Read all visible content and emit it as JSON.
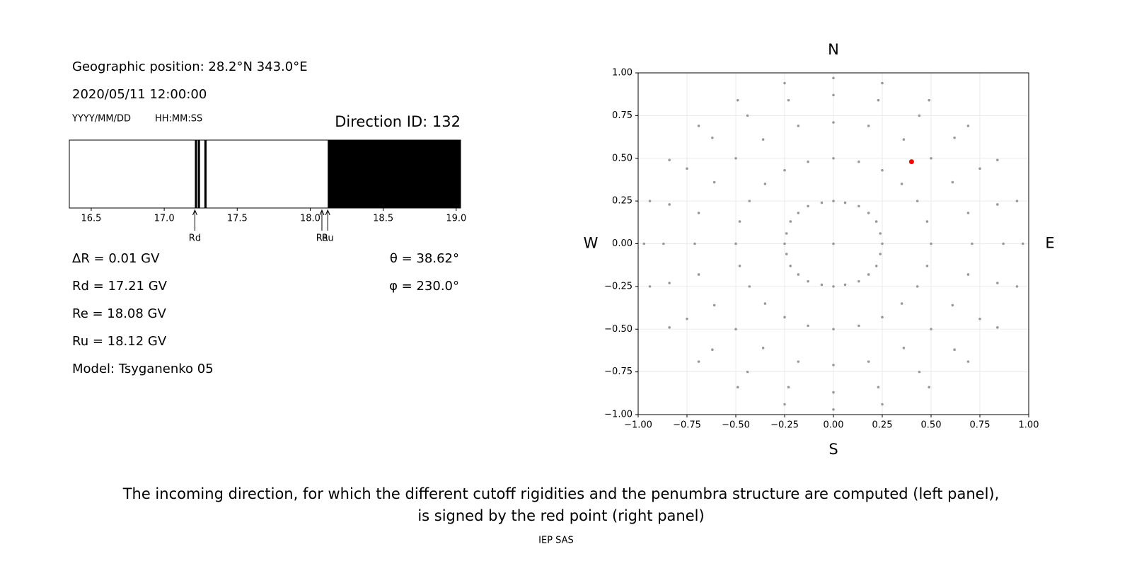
{
  "header": {
    "position": "Geographic position: 28.2°N 343.0°E",
    "datetime": "2020/05/11 12:00:00",
    "date_format": "YYYY/MM/DD",
    "time_format": "HH:MM:SS",
    "direction_id": "Direction ID: 132"
  },
  "results": [
    "ΔR = 0.01 GV",
    "Rd = 17.21 GV",
    "Re = 18.08 GV",
    "Ru = 18.12 GV",
    "Model: Tsyganenko 05"
  ],
  "angles": [
    "θ = 38.62°",
    "φ = 230.0°"
  ],
  "chart_data": [
    {
      "type": "penumbra",
      "color": "#000000",
      "xlim": [
        16.35,
        19.03
      ],
      "xticks": [
        16.5,
        {
          "value": 17,
          "label": "17.0"
        },
        17.5,
        {
          "value": 18,
          "label": "18.0"
        },
        18.5,
        {
          "value": 19,
          "label": "19.0"
        }
      ],
      "bands": [
        [
          17.21,
          17.225
        ],
        [
          17.23,
          17.245
        ],
        [
          17.275,
          17.29
        ],
        [
          18.12,
          19.03
        ]
      ],
      "markers": [
        {
          "label": "Rd",
          "value": 17.21
        },
        {
          "label": "Re",
          "value": 18.08
        },
        {
          "label": "Ru",
          "value": 18.12
        }
      ]
    },
    {
      "type": "scatter",
      "grid": true,
      "labels": {
        "top": "N",
        "bottom": "S",
        "left": "W",
        "right": "E"
      },
      "xlim": [
        -1,
        1
      ],
      "ylim": [
        -1,
        1
      ],
      "xticks": [
        {
          "value": -1,
          "label": "−1.00"
        },
        {
          "value": -0.75,
          "label": "−0.75"
        },
        {
          "value": -0.5,
          "label": "−0.50"
        },
        {
          "value": -0.25,
          "label": "−0.25"
        },
        {
          "value": 0,
          "label": "0.00"
        },
        0.25,
        {
          "value": 0.5,
          "label": "0.50"
        },
        0.75,
        {
          "value": 1,
          "label": "1.00"
        }
      ],
      "yticks": [
        {
          "value": -1,
          "label": "−1.00"
        },
        {
          "value": -0.75,
          "label": "−0.75"
        },
        {
          "value": -0.5,
          "label": "−0.50"
        },
        {
          "value": -0.25,
          "label": "−0.25"
        },
        {
          "value": 0,
          "label": "0.00"
        },
        0.25,
        {
          "value": 0.5,
          "label": "0.50"
        },
        0.75,
        {
          "value": 1,
          "label": "1.00"
        }
      ],
      "series": [
        {
          "color": "#999999",
          "x": [
            0,
            0.25,
            0.24,
            0.22,
            0.18,
            0.13,
            0.06,
            0,
            -0.06,
            -0.13,
            -0.18,
            -0.22,
            -0.24,
            -0.25,
            -0.24,
            -0.22,
            -0.18,
            -0.13,
            -0.06,
            0,
            0.06,
            0.13,
            0.18,
            0.22,
            0.24,
            0.5,
            0.48,
            0.43,
            0.35,
            0.25,
            0.13,
            0,
            -0.13,
            -0.25,
            -0.35,
            -0.43,
            -0.48,
            -0.5,
            -0.48,
            -0.43,
            -0.35,
            -0.25,
            -0.13,
            0,
            0.13,
            0.25,
            0.35,
            0.43,
            0.48,
            0.71,
            0.69,
            0.61,
            0.5,
            0.36,
            0.18,
            0,
            -0.18,
            -0.36,
            -0.5,
            -0.61,
            -0.69,
            -0.71,
            -0.69,
            -0.61,
            -0.5,
            -0.36,
            -0.18,
            0,
            0.18,
            0.36,
            0.5,
            0.61,
            0.69,
            0.87,
            0.84,
            0.75,
            0.62,
            0.44,
            0.23,
            0,
            -0.23,
            -0.44,
            -0.62,
            -0.75,
            -0.84,
            -0.87,
            -0.84,
            -0.75,
            -0.62,
            -0.44,
            -0.23,
            0,
            0.23,
            0.44,
            0.62,
            0.75,
            0.84,
            0.97,
            0.94,
            0.84,
            0.69,
            0.49,
            0.25,
            0,
            -0.25,
            -0.49,
            -0.69,
            -0.84,
            -0.94,
            -0.97,
            -0.94,
            -0.84,
            -0.69,
            -0.49,
            -0.25,
            0,
            0.25,
            0.49,
            0.69,
            0.84,
            0.94
          ],
          "y": [
            0,
            0,
            0.06,
            0.13,
            0.18,
            0.22,
            0.24,
            0.25,
            0.24,
            0.22,
            0.18,
            0.13,
            0.06,
            0,
            -0.06,
            -0.13,
            -0.18,
            -0.22,
            -0.24,
            -0.25,
            -0.24,
            -0.22,
            -0.18,
            -0.13,
            -0.06,
            0,
            0.13,
            0.25,
            0.35,
            0.43,
            0.48,
            0.5,
            0.48,
            0.43,
            0.35,
            0.25,
            0.13,
            0,
            -0.13,
            -0.25,
            -0.35,
            -0.43,
            -0.48,
            -0.5,
            -0.48,
            -0.43,
            -0.35,
            -0.25,
            -0.13,
            0,
            0.18,
            0.36,
            0.5,
            0.61,
            0.69,
            0.71,
            0.69,
            0.61,
            0.5,
            0.36,
            0.18,
            0,
            -0.18,
            -0.36,
            -0.5,
            -0.61,
            -0.69,
            -0.71,
            -0.69,
            -0.61,
            -0.5,
            -0.36,
            -0.18,
            0,
            0.23,
            0.44,
            0.62,
            0.75,
            0.84,
            0.87,
            0.84,
            0.75,
            0.62,
            0.44,
            0.23,
            0,
            -0.23,
            -0.44,
            -0.62,
            -0.75,
            -0.84,
            -0.87,
            -0.84,
            -0.75,
            -0.62,
            -0.44,
            -0.23,
            0,
            0.25,
            0.49,
            0.69,
            0.84,
            0.94,
            0.97,
            0.94,
            0.84,
            0.69,
            0.49,
            0.25,
            0,
            -0.25,
            -0.49,
            -0.69,
            -0.84,
            -0.94,
            -0.97,
            -0.94,
            -0.84,
            -0.69,
            -0.49,
            -0.25
          ]
        },
        {
          "color": "#ff0000",
          "x": [
            0.4
          ],
          "y": [
            0.48
          ]
        }
      ]
    }
  ],
  "caption": [
    "The incoming direction, for which the different cutoff rigidities and the penumbra structure are computed (left panel),",
    "is signed by the red point (right panel)"
  ],
  "footer": "IEP SAS"
}
